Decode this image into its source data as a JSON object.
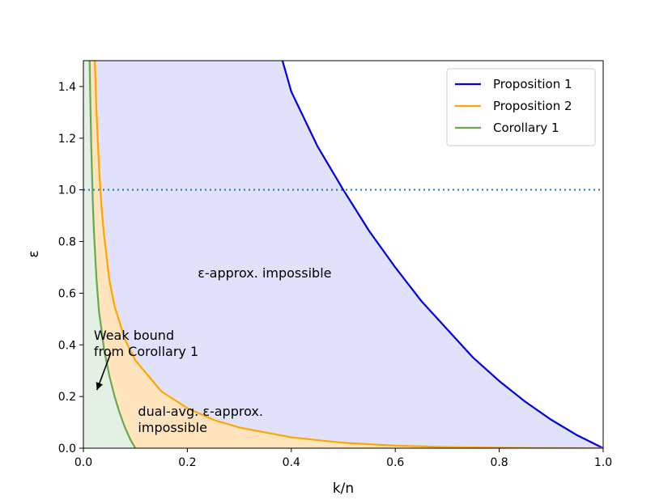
{
  "chart_data": {
    "type": "line",
    "title": "",
    "xlabel": "k/n",
    "ylabel": "ε",
    "xlim": [
      0.0,
      1.0
    ],
    "ylim": [
      0.0,
      1.5
    ],
    "xticks": [
      0.0,
      0.2,
      0.4,
      0.6,
      0.8,
      1.0
    ],
    "yticks": [
      0.0,
      0.2,
      0.4,
      0.6,
      0.8,
      1.0,
      1.2,
      1.4
    ],
    "xtick_labels": [
      "0.0",
      "0.2",
      "0.4",
      "0.6",
      "0.8",
      "1.0"
    ],
    "ytick_labels": [
      "0.0",
      "0.2",
      "0.4",
      "0.6",
      "0.8",
      "1.0",
      "1.2",
      "1.4"
    ],
    "grid": false,
    "legend_position": "top-right",
    "series": [
      {
        "name": "Proposition 1",
        "color": "#0000dd",
        "fill": "#e1e1fb",
        "x": [
          0.383,
          0.4,
          0.45,
          0.5,
          0.55,
          0.6,
          0.65,
          0.7,
          0.75,
          0.8,
          0.85,
          0.9,
          0.95,
          1.0
        ],
        "y": [
          1.5,
          1.38,
          1.17,
          1.0,
          0.84,
          0.7,
          0.57,
          0.46,
          0.35,
          0.26,
          0.18,
          0.11,
          0.05,
          0.0
        ]
      },
      {
        "name": "Proposition 2",
        "color": "#ffa500",
        "fill": "#ffe4bd",
        "x": [
          0.022,
          0.025,
          0.03,
          0.035,
          0.04,
          0.05,
          0.06,
          0.08,
          0.1,
          0.15,
          0.2,
          0.25,
          0.3,
          0.4,
          0.5,
          0.6,
          0.7,
          0.8,
          0.9,
          1.0
        ],
        "y": [
          1.5,
          1.31,
          1.09,
          0.93,
          0.82,
          0.65,
          0.55,
          0.42,
          0.34,
          0.22,
          0.155,
          0.11,
          0.08,
          0.042,
          0.021,
          0.01,
          0.004,
          0.0015,
          0.0004,
          0.0
        ]
      },
      {
        "name": "Corollary 1",
        "color": "#6aa84f",
        "fill": "#e3f0e3",
        "x": [
          0.012,
          0.013,
          0.015,
          0.018,
          0.02,
          0.025,
          0.03,
          0.04,
          0.05,
          0.06,
          0.07,
          0.08,
          0.09,
          0.1
        ],
        "y": [
          1.5,
          1.38,
          1.18,
          0.96,
          0.85,
          0.66,
          0.53,
          0.38,
          0.28,
          0.2,
          0.135,
          0.08,
          0.035,
          0.0
        ]
      }
    ],
    "reference_lines": [
      {
        "axis": "y",
        "value": 1.0,
        "style": "dotted",
        "color": "#1f77b4"
      }
    ],
    "annotations": [
      {
        "lines": [
          "ε-approx. impossible"
        ],
        "x": 0.22,
        "y": 0.66
      },
      {
        "lines": [
          "dual-avg. ε-approx.",
          "impossible"
        ],
        "x": 0.105,
        "y": 0.125
      },
      {
        "lines": [
          "Weak bound",
          "from Corollary 1"
        ],
        "x": 0.02,
        "y": 0.42,
        "arrow_to": [
          0.026,
          0.225
        ],
        "arrow_from": [
          0.053,
          0.37
        ]
      }
    ]
  }
}
